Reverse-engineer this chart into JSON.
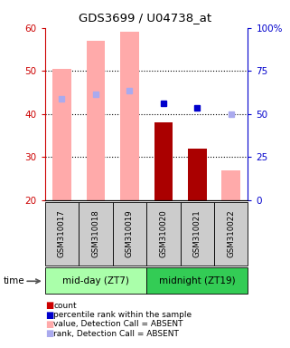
{
  "title": "GDS3699 / U04738_at",
  "samples": [
    "GSM310017",
    "GSM310018",
    "GSM310019",
    "GSM310020",
    "GSM310021",
    "GSM310022"
  ],
  "groups": [
    "mid-day (ZT7)",
    "midnight (ZT19)"
  ],
  "bar_bottom": 20,
  "ylim": [
    20,
    60
  ],
  "y_left_ticks": [
    20,
    30,
    40,
    50,
    60
  ],
  "y_right_labels": [
    "0",
    "25",
    "50",
    "75",
    "100%"
  ],
  "absent_values": [
    50.5,
    57.0,
    59.0,
    null,
    null,
    27.0
  ],
  "present_values": [
    null,
    null,
    null,
    38.0,
    32.0,
    null
  ],
  "absent_rank": [
    43.5,
    44.5,
    45.5,
    null,
    null,
    40.0
  ],
  "present_rank": [
    null,
    null,
    null,
    42.5,
    41.5,
    null
  ],
  "colors": {
    "present_bar": "#aa0000",
    "absent_bar": "#ffaaaa",
    "present_rank": "#0000cc",
    "absent_rank": "#aaaaee",
    "group1_bg": "#aaffaa",
    "group2_bg": "#33cc55",
    "label_bg": "#cccccc",
    "left_tick_color": "#cc0000",
    "right_tick_color": "#0000cc"
  },
  "legend_items": [
    {
      "color": "#cc0000",
      "label": "count"
    },
    {
      "color": "#0000cc",
      "label": "percentile rank within the sample"
    },
    {
      "color": "#ffaaaa",
      "label": "value, Detection Call = ABSENT"
    },
    {
      "color": "#aaaaee",
      "label": "rank, Detection Call = ABSENT"
    }
  ]
}
